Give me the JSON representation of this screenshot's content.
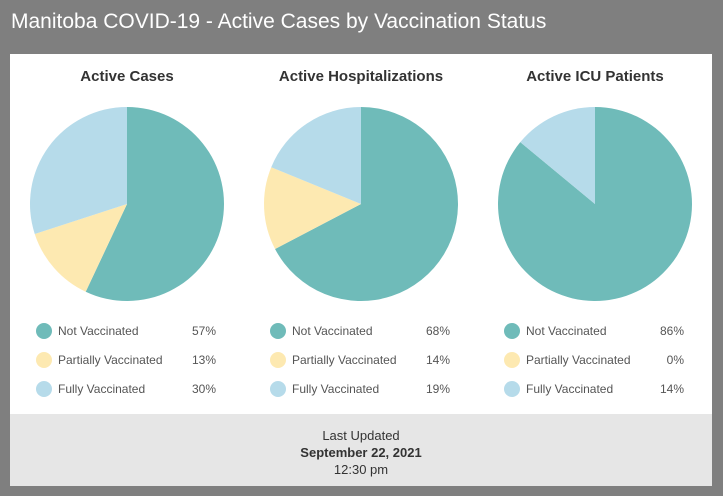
{
  "header": {
    "title": "Manitoba COVID-19 - Active Cases by Vaccination Status"
  },
  "colors": {
    "not_vaccinated": "#6fbbb9",
    "partially_vaccinated": "#fde9b1",
    "fully_vaccinated": "#b6dbea"
  },
  "chart_data": [
    {
      "type": "pie",
      "title": "Active Cases",
      "categories": [
        "Not Vaccinated",
        "Partially Vaccinated",
        "Fully Vaccinated"
      ],
      "values": [
        57,
        13,
        30
      ],
      "value_labels": [
        "57%",
        "13%",
        "30%"
      ]
    },
    {
      "type": "pie",
      "title": "Active Hospitalizations",
      "categories": [
        "Not Vaccinated",
        "Partially Vaccinated",
        "Fully Vaccinated"
      ],
      "values": [
        68,
        14,
        19
      ],
      "value_labels": [
        "68%",
        "14%",
        "19%"
      ]
    },
    {
      "type": "pie",
      "title": "Active ICU Patients",
      "categories": [
        "Not Vaccinated",
        "Partially Vaccinated",
        "Fully Vaccinated"
      ],
      "values": [
        86,
        0,
        14
      ],
      "value_labels": [
        "86%",
        "0%",
        "14%"
      ]
    }
  ],
  "footer": {
    "label": "Last Updated",
    "date": "September 22, 2021",
    "time": "12:30 pm"
  }
}
